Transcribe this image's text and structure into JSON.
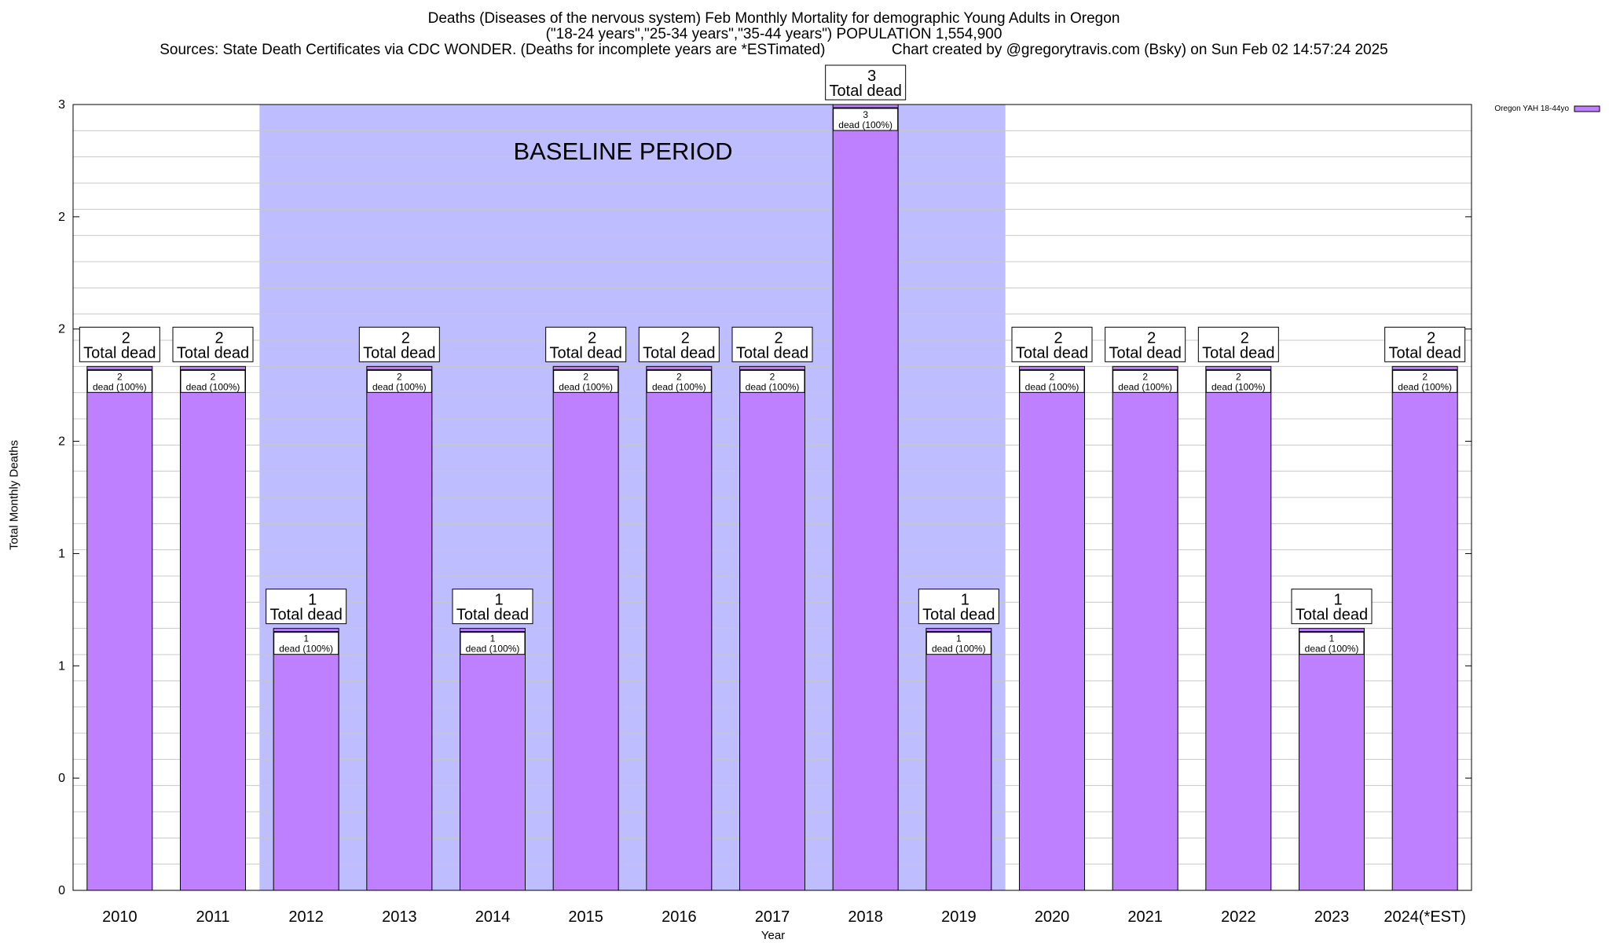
{
  "header": {
    "title": "Deaths (Diseases of the nervous system) Feb Monthly Mortality for demographic Young Adults in Oregon",
    "subtitle": "(\"18-24 years\",\"25-34 years\",\"35-44 years\") POPULATION 1,554,900",
    "sources": "Sources: State Death Certificates via CDC WONDER. (Deaths for incomplete years are *ESTimated)                Chart created by @gregorytravis.com (Bsky) on Sun Feb 02 14:57:24 2025"
  },
  "chart_data": {
    "type": "bar",
    "title": "Deaths (Diseases of the nervous system) Feb Monthly Mortality for demographic Young Adults in Oregon",
    "xlabel": "Year",
    "ylabel": "Total Monthly Deaths",
    "categories": [
      "2010",
      "2011",
      "2012",
      "2013",
      "2014",
      "2015",
      "2016",
      "2017",
      "2018",
      "2019",
      "2020",
      "2021",
      "2022",
      "2023",
      "2024(*EST)"
    ],
    "series": [
      {
        "name": "Oregon YAH 18-44yo",
        "color": "#bf80ff",
        "values": [
          2,
          2,
          1,
          2,
          1,
          2,
          2,
          2,
          3,
          1,
          2,
          2,
          2,
          1,
          2
        ]
      }
    ],
    "ylim": [
      0,
      3
    ],
    "ytick_labels": [
      "0",
      "0",
      "1",
      "1",
      "2",
      "2",
      "2",
      "3"
    ],
    "total_label_suffix": "Total dead",
    "inner_label_suffix": "dead (100%)",
    "baseline": {
      "label": "BASELINE PERIOD",
      "start": "2012",
      "end": "2019",
      "color": "#bdbdff"
    },
    "grid": true,
    "legend": "top-right"
  }
}
